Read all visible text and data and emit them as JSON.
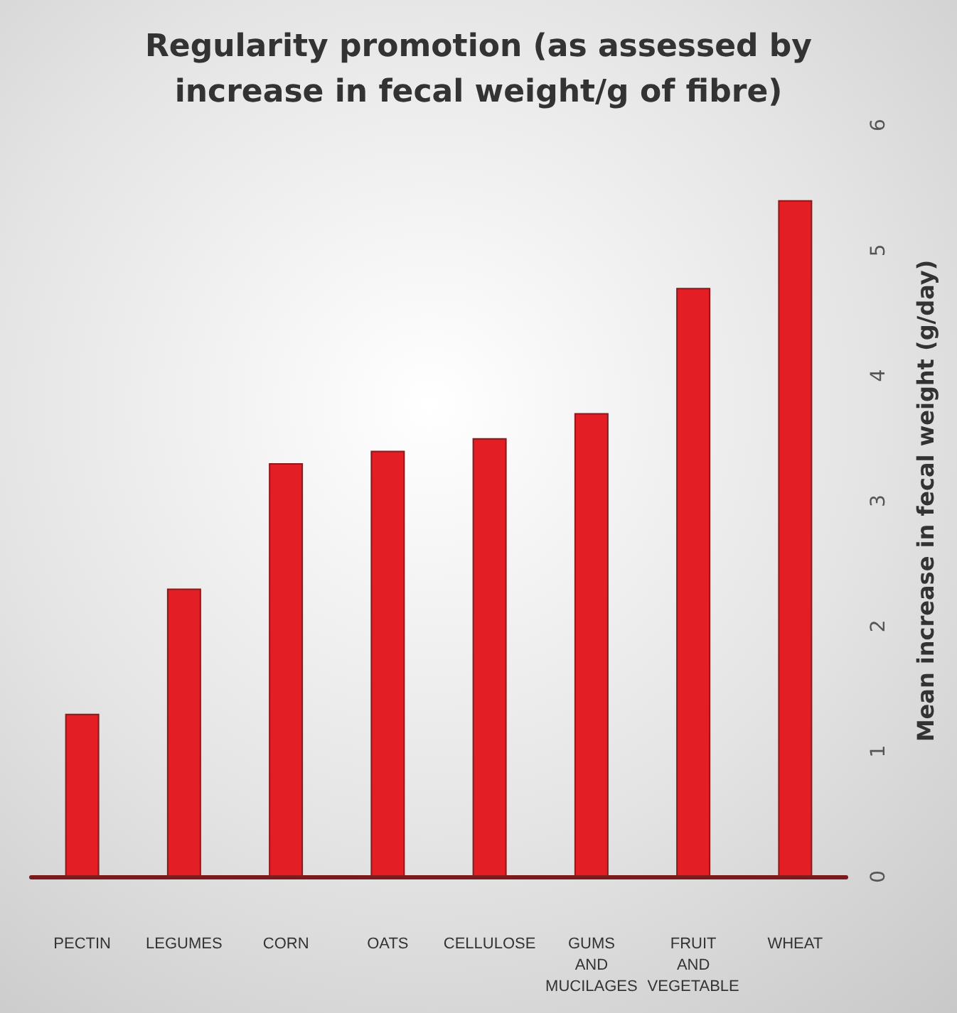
{
  "chart_data": {
    "type": "bar",
    "title": "Regularity promotion (as assessed by\nincrease in fecal weight/g of fibre)",
    "ylabel": "Mean increase in fecal weight (g/day)",
    "categories": [
      "PECTIN",
      "LEGUMES",
      "CORN",
      "OATS",
      "CELLULOSE",
      "GUMS\nAND\nMUCILAGES",
      "FRUIT\nAND\nVEGETABLE",
      "WHEAT"
    ],
    "values": [
      1.3,
      2.3,
      3.3,
      3.4,
      3.5,
      3.7,
      4.7,
      5.4
    ],
    "color": "#e31e24",
    "ylim": [
      0,
      6
    ],
    "yticks": [
      0,
      1,
      2,
      3,
      4,
      5,
      6
    ],
    "grid": false
  }
}
